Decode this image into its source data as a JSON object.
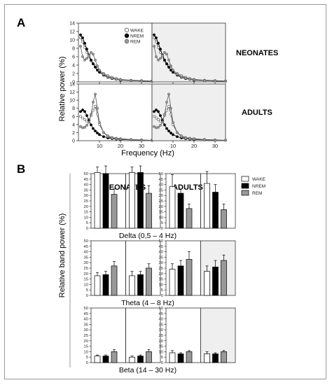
{
  "panel_a": {
    "letter": "A",
    "row_labels": [
      "NEONATES",
      "ADULTS"
    ],
    "ylabel": "Relative power (%)",
    "xlabel": "Frequency (Hz)",
    "y_ticks": [
      "0",
      "2",
      "4",
      "6",
      "8",
      "10",
      "12",
      "14"
    ],
    "x_ticks": [
      "10",
      "20",
      "30"
    ],
    "legend": [
      "WAKE",
      "NREM",
      "REM"
    ]
  },
  "panel_b": {
    "letter": "B",
    "col_labels": [
      "NEONATES",
      "ADULTS"
    ],
    "ylabel": "Relative band power (%)",
    "row_labels": [
      "Delta (0,5 – 4 Hz)",
      "Theta (4 – 8 Hz)",
      "Beta (14 – 30 Hz)"
    ],
    "y_ticks": [
      "0",
      "5",
      "10",
      "15",
      "20",
      "25",
      "30",
      "35",
      "40",
      "45",
      "50"
    ],
    "legend": [
      "WAKE",
      "NREM",
      "REM"
    ]
  },
  "colors": {
    "wake": "#ffffff",
    "nrem": "#000000",
    "rem": "#999999",
    "shade": "#efefef",
    "axis": "#333333"
  },
  "chart_data": [
    {
      "type": "line",
      "title": "NEONATES",
      "xlabel": "Frequency (Hz)",
      "ylabel": "Relative power (%)",
      "xlim": [
        0,
        35
      ],
      "ylim": [
        0,
        14
      ],
      "x": [
        1,
        2,
        3,
        4,
        5,
        6,
        7,
        8,
        9,
        10,
        12,
        14,
        16,
        18,
        20,
        25,
        30,
        35
      ],
      "series": [
        {
          "name": "WAKE",
          "values": [
            10.5,
            9.5,
            8.2,
            7,
            6,
            5,
            4.3,
            3.8,
            3.2,
            2.7,
            2,
            1.5,
            1.1,
            0.8,
            0.6,
            0.4,
            0.3,
            0.2
          ]
        },
        {
          "name": "NREM",
          "values": [
            11.2,
            10.5,
            9.2,
            7.8,
            6.4,
            5.2,
            4.3,
            3.5,
            2.8,
            2.3,
            1.6,
            1.1,
            0.8,
            0.6,
            0.4,
            0.3,
            0.2,
            0.1
          ]
        },
        {
          "name": "REM",
          "values": [
            8.5,
            6,
            5.2,
            5.6,
            6.3,
            7,
            6.6,
            5.2,
            3.8,
            2.8,
            1.8,
            1.2,
            0.9,
            0.6,
            0.5,
            0.3,
            0.2,
            0.1
          ]
        }
      ]
    },
    {
      "type": "line",
      "title": "ADULTS",
      "xlabel": "Frequency (Hz)",
      "ylabel": "Relative power (%)",
      "xlim": [
        0,
        35
      ],
      "ylim": [
        0,
        14
      ],
      "x": [
        1,
        2,
        3,
        4,
        5,
        6,
        7,
        8,
        9,
        10,
        12,
        14,
        16,
        18,
        20,
        25,
        30,
        35
      ],
      "series": [
        {
          "name": "WAKE",
          "values": [
            6,
            5.6,
            5.2,
            4.8,
            5.2,
            6.2,
            7.5,
            8.5,
            6.5,
            4,
            2,
            1.2,
            0.8,
            0.6,
            0.5,
            0.3,
            0.2,
            0.1
          ]
        },
        {
          "name": "NREM",
          "values": [
            7.2,
            7.6,
            7.2,
            6.2,
            5,
            3.9,
            3,
            2.4,
            1.9,
            1.5,
            1,
            0.7,
            0.5,
            0.4,
            0.3,
            0.2,
            0.1,
            0.1
          ]
        },
        {
          "name": "REM",
          "values": [
            3.5,
            3.2,
            3.3,
            3.8,
            4.6,
            6.5,
            9.5,
            11.5,
            8,
            4.5,
            2,
            1,
            0.6,
            0.5,
            0.4,
            0.2,
            0.1,
            0.1
          ]
        }
      ]
    },
    {
      "type": "bar",
      "title": "Delta (0,5 – 4 Hz)",
      "ylabel": "Relative band power (%)",
      "ylim": [
        0,
        50
      ],
      "categories": [
        "WAKE",
        "NREM",
        "REM"
      ],
      "series": [
        {
          "name": "NEONATES",
          "values": [
            51,
            50,
            31
          ],
          "errors": [
            5,
            7,
            5
          ]
        },
        {
          "name": "NEONATES",
          "values": [
            51,
            51,
            32
          ],
          "errors": [
            5,
            6,
            7
          ]
        },
        {
          "name": "ADULTS",
          "values": [
            38,
            32,
            18
          ],
          "errors": [
            11,
            4,
            4
          ]
        },
        {
          "name": "ADULTS",
          "values": [
            41,
            33,
            17
          ],
          "errors": [
            11,
            7,
            5
          ]
        }
      ]
    },
    {
      "type": "bar",
      "title": "Theta (4 – 8 Hz)",
      "ylabel": "Relative band power (%)",
      "ylim": [
        0,
        50
      ],
      "categories": [
        "WAKE",
        "NREM",
        "REM"
      ],
      "series": [
        {
          "name": "NEONATES",
          "values": [
            18,
            19,
            27
          ],
          "errors": [
            3,
            3,
            4
          ]
        },
        {
          "name": "NEONATES",
          "values": [
            18,
            19,
            25
          ],
          "errors": [
            4,
            3,
            4
          ]
        },
        {
          "name": "ADULTS",
          "values": [
            24,
            27,
            33
          ],
          "errors": [
            5,
            5,
            7
          ]
        },
        {
          "name": "ADULTS",
          "values": [
            22,
            26,
            32
          ],
          "errors": [
            5,
            6,
            5
          ]
        }
      ]
    },
    {
      "type": "bar",
      "title": "Beta (14 – 30 Hz)",
      "ylabel": "Relative band power (%)",
      "ylim": [
        0,
        50
      ],
      "categories": [
        "WAKE",
        "NREM",
        "REM"
      ],
      "series": [
        {
          "name": "NEONATES",
          "values": [
            6,
            6,
            10
          ],
          "errors": [
            1,
            1,
            2
          ]
        },
        {
          "name": "NEONATES",
          "values": [
            5,
            6,
            10
          ],
          "errors": [
            1,
            1,
            2
          ]
        },
        {
          "name": "ADULTS",
          "values": [
            9,
            8,
            10
          ],
          "errors": [
            2,
            1,
            1
          ]
        },
        {
          "name": "ADULTS",
          "values": [
            8,
            8,
            10
          ],
          "errors": [
            2,
            1,
            1
          ]
        }
      ]
    }
  ]
}
